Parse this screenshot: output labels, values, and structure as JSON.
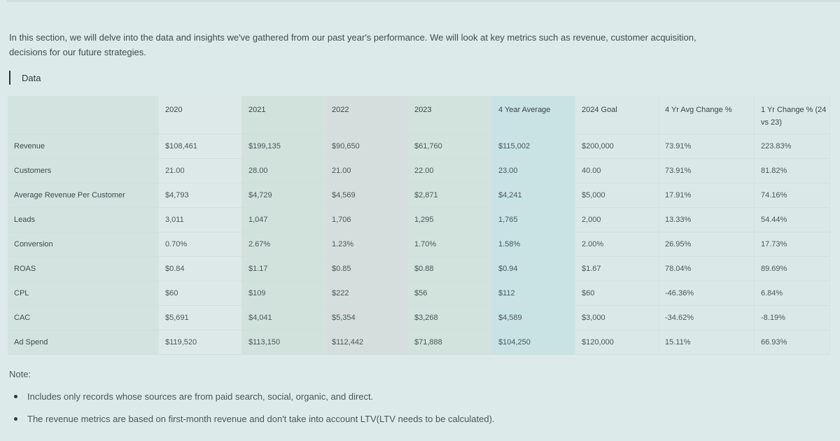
{
  "intro": {
    "line1": "In this section, we will delve into the data and insights we've gathered from our past year's performance. We will look at key metrics such as revenue, customer acquisition,",
    "line2": "decisions for our future strategies."
  },
  "section": {
    "label": "Data"
  },
  "table": {
    "headers": [
      "",
      "2020",
      "2021",
      "2022",
      "2023",
      "4 Year Average",
      "2024 Goal",
      "4 Yr Avg Change %",
      "1 Yr Change % (24 vs 23)"
    ],
    "rows": [
      [
        "Revenue",
        "$108,461",
        "$199,135",
        "$90,650",
        "$61,760",
        "$115,002",
        "$200,000",
        "73.91%",
        "223.83%"
      ],
      [
        "Customers",
        "21.00",
        "28.00",
        "21.00",
        "22.00",
        "23.00",
        "40.00",
        "73.91%",
        "81.82%"
      ],
      [
        "Average Revenue Per Customer",
        "$4,793",
        "$4,729",
        "$4,569",
        "$2,871",
        "$4,241",
        "$5,000",
        "17.91%",
        "74.16%"
      ],
      [
        "Leads",
        "3,011",
        "1,047",
        "1,706",
        "1,295",
        "1,765",
        "2,000",
        "13.33%",
        "54.44%"
      ],
      [
        "Conversion",
        "0.70%",
        "2.67%",
        "1.23%",
        "1.70%",
        "1.58%",
        "2.00%",
        "26.95%",
        "17.73%"
      ],
      [
        "ROAS",
        "$0.84",
        "$1.17",
        "$0.85",
        "$0.88",
        "$0.94",
        "$1.67",
        "78.04%",
        "89.69%"
      ],
      [
        "CPL",
        "$60",
        "$109",
        "$222",
        "$56",
        "$112",
        "$60",
        "-46.36%",
        "6.84%"
      ],
      [
        "CAC",
        "$5,691",
        "$4,041",
        "$5,354",
        "$3,268",
        "$4,589",
        "$3,000",
        "-34.62%",
        "-8.19%"
      ],
      [
        "Ad Spend",
        "$119,520",
        "$113,150",
        "$112,442",
        "$71,888",
        "$104,250",
        "$120,000",
        "15.11%",
        "66.93%"
      ]
    ]
  },
  "notes": {
    "title": "Note:",
    "items": [
      "Includes only records whose sources are from paid search, social, organic, and direct.",
      "The revenue metrics are based on first-month revenue and don't take into account LTV(LTV needs to be calculated)."
    ]
  },
  "colors": {
    "background": "#dcebea",
    "col_2021": "#d1e1dc",
    "col_2022": "#d5dedc",
    "col_2023": "#d1e3dc",
    "col_4yr_avg": "#c9e2e4"
  }
}
